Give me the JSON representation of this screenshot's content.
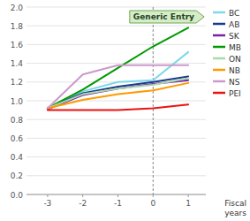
{
  "chart_data": {
    "type": "line",
    "x": [
      -3,
      -2,
      -1,
      0,
      1
    ],
    "series": [
      {
        "name": "BC",
        "color": "#7dd8e8",
        "values": [
          0.92,
          1.1,
          1.2,
          1.22,
          1.52
        ]
      },
      {
        "name": "AB",
        "color": "#1a3a8a",
        "values": [
          0.92,
          1.08,
          1.15,
          1.2,
          1.26
        ]
      },
      {
        "name": "SK",
        "color": "#7722aa",
        "values": [
          0.91,
          1.06,
          1.13,
          1.18,
          1.22
        ]
      },
      {
        "name": "MB",
        "color": "#009900",
        "values": [
          0.92,
          1.12,
          1.35,
          1.58,
          1.78
        ]
      },
      {
        "name": "ON",
        "color": "#aad9aa",
        "values": [
          0.92,
          1.07,
          1.13,
          1.17,
          1.24
        ]
      },
      {
        "name": "NB",
        "color": "#ff9900",
        "values": [
          0.92,
          1.01,
          1.07,
          1.11,
          1.19
        ]
      },
      {
        "name": "NS",
        "color": "#cc99cc",
        "values": [
          0.92,
          1.28,
          1.38,
          1.38,
          1.38
        ]
      },
      {
        "name": "PEI",
        "color": "#ee1111",
        "values": [
          0.9,
          0.9,
          0.9,
          0.92,
          0.96
        ]
      }
    ],
    "x_label": "Fiscal\nyears",
    "annotations": [
      {
        "text": "Generic Entry",
        "x": 0
      }
    ],
    "xlim": [
      -3.6,
      1.5
    ],
    "xticks": [
      -3,
      -2,
      -1,
      0,
      1
    ],
    "ylim": [
      0.0,
      2.0
    ],
    "yticks": [
      {
        "value": 0.0,
        "label": "0.0"
      },
      0.2,
      0.4,
      0.6,
      0.8,
      {
        "value": 1.0,
        "label": "1.0"
      },
      1.2,
      1.4,
      1.6,
      1.8,
      {
        "value": 2.0,
        "label": "2.0"
      }
    ],
    "grid": true,
    "legend": "right"
  }
}
